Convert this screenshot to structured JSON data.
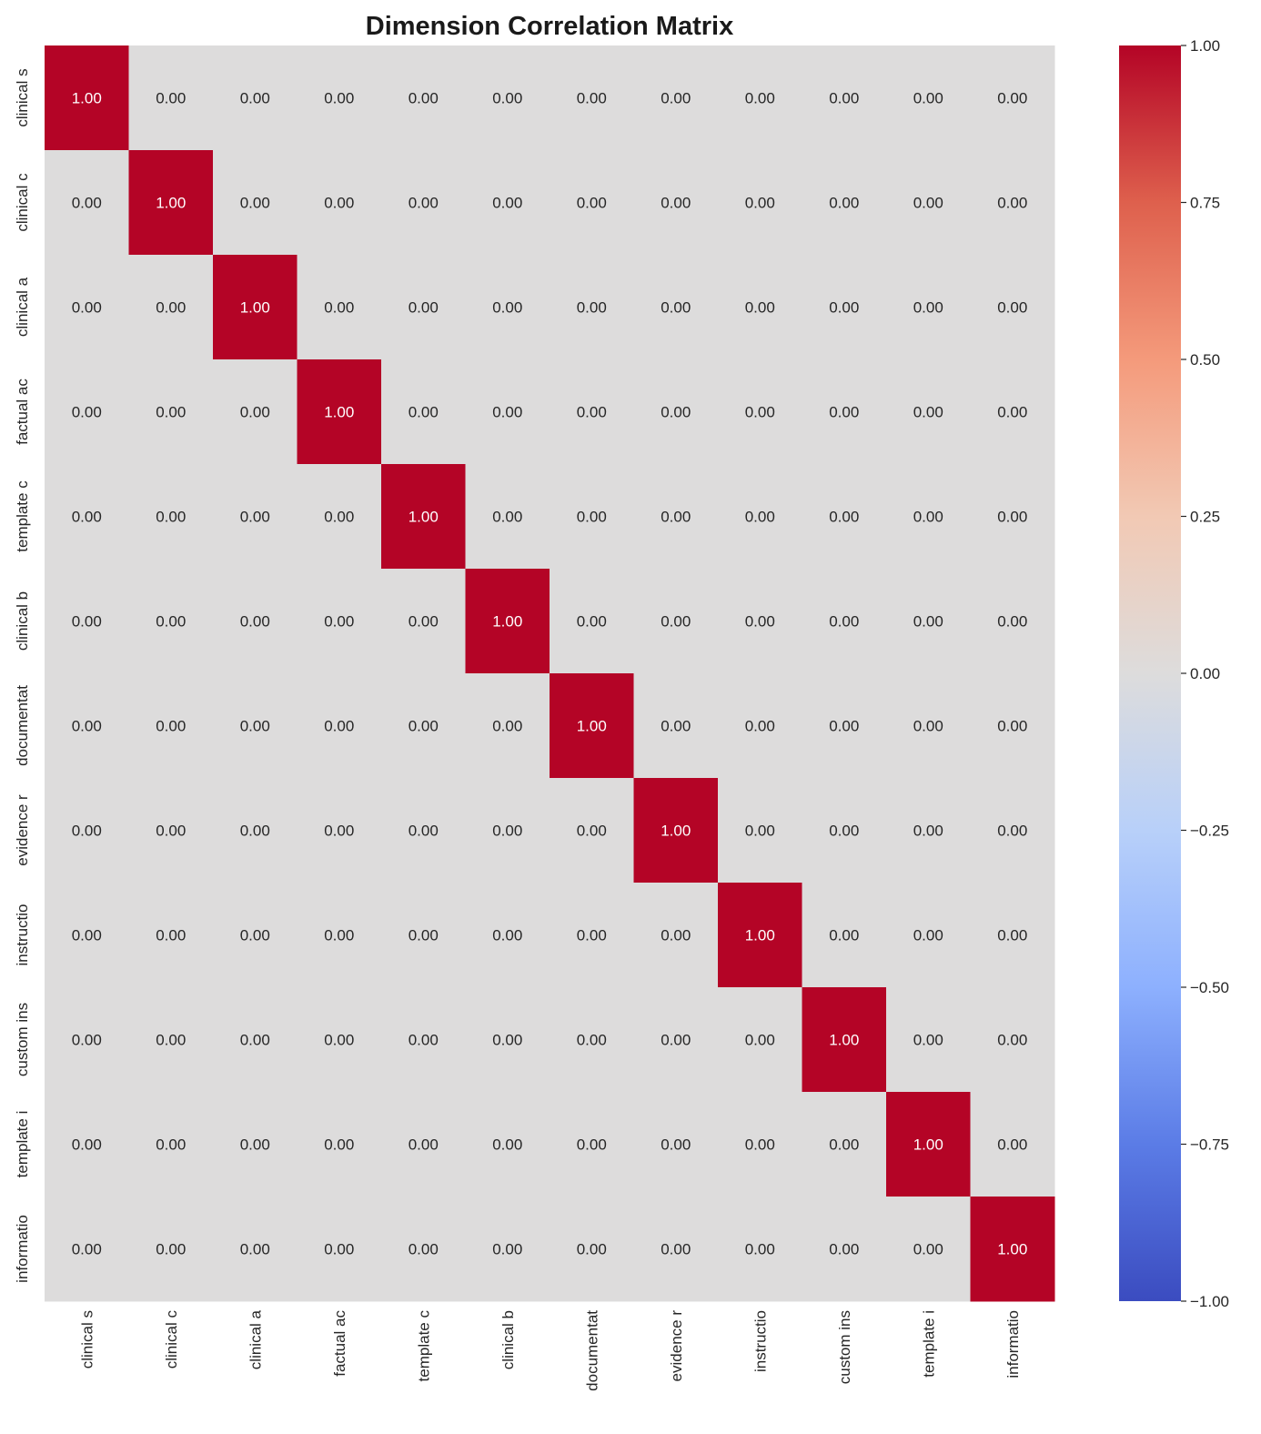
{
  "chart_data": {
    "type": "heatmap",
    "title": "Dimension Correlation Matrix",
    "x_labels": [
      "clinical s",
      "clinical c",
      "clinical a",
      "factual ac",
      "template c",
      "clinical b",
      "documentat",
      "evidence r",
      "instructio",
      "custom ins",
      "template i",
      "informatio"
    ],
    "y_labels": [
      "clinical s",
      "clinical c",
      "clinical a",
      "factual ac",
      "template c",
      "clinical b",
      "documentat",
      "evidence r",
      "instructio",
      "custom ins",
      "template i",
      "informatio"
    ],
    "values": [
      [
        1,
        0,
        0,
        0,
        0,
        0,
        0,
        0,
        0,
        0,
        0,
        0
      ],
      [
        0,
        1,
        0,
        0,
        0,
        0,
        0,
        0,
        0,
        0,
        0,
        0
      ],
      [
        0,
        0,
        1,
        0,
        0,
        0,
        0,
        0,
        0,
        0,
        0,
        0
      ],
      [
        0,
        0,
        0,
        1,
        0,
        0,
        0,
        0,
        0,
        0,
        0,
        0
      ],
      [
        0,
        0,
        0,
        0,
        1,
        0,
        0,
        0,
        0,
        0,
        0,
        0
      ],
      [
        0,
        0,
        0,
        0,
        0,
        1,
        0,
        0,
        0,
        0,
        0,
        0
      ],
      [
        0,
        0,
        0,
        0,
        0,
        0,
        1,
        0,
        0,
        0,
        0,
        0
      ],
      [
        0,
        0,
        0,
        0,
        0,
        0,
        0,
        1,
        0,
        0,
        0,
        0
      ],
      [
        0,
        0,
        0,
        0,
        0,
        0,
        0,
        0,
        1,
        0,
        0,
        0
      ],
      [
        0,
        0,
        0,
        0,
        0,
        0,
        0,
        0,
        0,
        1,
        0,
        0
      ],
      [
        0,
        0,
        0,
        0,
        0,
        0,
        0,
        0,
        0,
        0,
        1,
        0
      ],
      [
        0,
        0,
        0,
        0,
        0,
        0,
        0,
        0,
        0,
        0,
        0,
        1
      ]
    ],
    "annotation_format": "0.00",
    "colormap": "coolwarm",
    "vmin": -1,
    "vmax": 1,
    "colorbar_ticks": [
      1.0,
      0.75,
      0.5,
      0.25,
      0.0,
      -0.25,
      -0.5,
      -0.75,
      -1.0
    ],
    "colorbar_tick_labels": [
      "1.00",
      "0.75",
      "0.50",
      "0.25",
      "0.00",
      "−0.25",
      "−0.50",
      "−0.75",
      "−1.00"
    ],
    "colormap_stops": [
      {
        "v": -1.0,
        "color": "#3b4cc0"
      },
      {
        "v": -0.75,
        "color": "#5b7ce6"
      },
      {
        "v": -0.5,
        "color": "#8db0fe"
      },
      {
        "v": -0.25,
        "color": "#b8d0f9"
      },
      {
        "v": 0.0,
        "color": "#dddcdc"
      },
      {
        "v": 0.25,
        "color": "#f2c9b4"
      },
      {
        "v": 0.5,
        "color": "#f49a7b"
      },
      {
        "v": 0.75,
        "color": "#de604d"
      },
      {
        "v": 1.0,
        "color": "#b40426"
      }
    ],
    "colorbar_position": "right"
  }
}
